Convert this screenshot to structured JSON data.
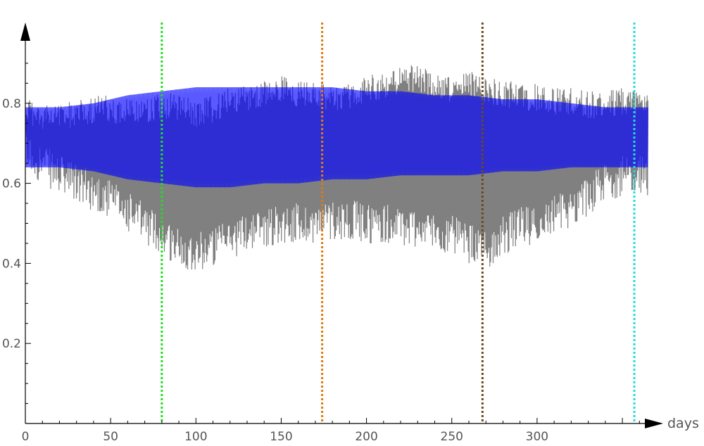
{
  "chart_data": {
    "type": "line",
    "title": "",
    "xlabel": "days",
    "ylabel": "",
    "xlim": [
      0,
      365
    ],
    "ylim": [
      0,
      0.95
    ],
    "x_ticks": [
      0,
      50,
      100,
      150,
      200,
      250,
      300
    ],
    "y_ticks": [
      0.2,
      0.4,
      0.6,
      0.8
    ],
    "grid": false,
    "legend": "none",
    "series": [
      {
        "kind": "daily-oscillation",
        "color": "#808080",
        "day_start": 0,
        "day_end": 365,
        "envelope_days": [
          0,
          10,
          20,
          30,
          40,
          50,
          60,
          70,
          80,
          90,
          100,
          110,
          120,
          130,
          140,
          150,
          160,
          170,
          180,
          190,
          200,
          210,
          220,
          230,
          240,
          250,
          260,
          270,
          280,
          290,
          300,
          310,
          320,
          330,
          340,
          350,
          360,
          365
        ],
        "upper": [
          0.82,
          0.8,
          0.8,
          0.81,
          0.82,
          0.82,
          0.81,
          0.82,
          0.83,
          0.82,
          0.81,
          0.82,
          0.84,
          0.85,
          0.86,
          0.87,
          0.86,
          0.86,
          0.85,
          0.85,
          0.87,
          0.88,
          0.89,
          0.9,
          0.88,
          0.87,
          0.88,
          0.87,
          0.86,
          0.85,
          0.85,
          0.84,
          0.84,
          0.83,
          0.83,
          0.84,
          0.84,
          0.84
        ],
        "lower": [
          0.63,
          0.6,
          0.57,
          0.55,
          0.53,
          0.51,
          0.48,
          0.45,
          0.42,
          0.39,
          0.38,
          0.39,
          0.41,
          0.43,
          0.44,
          0.45,
          0.45,
          0.45,
          0.46,
          0.46,
          0.45,
          0.45,
          0.44,
          0.44,
          0.43,
          0.42,
          0.4,
          0.38,
          0.42,
          0.44,
          0.45,
          0.47,
          0.49,
          0.52,
          0.55,
          0.57,
          0.58,
          0.55
        ]
      },
      {
        "kind": "smooth-envelope",
        "color": "#0000ff",
        "opacity": 0.65,
        "day_start": 0,
        "day_end": 365,
        "envelope_days": [
          0,
          20,
          40,
          60,
          80,
          100,
          110,
          120,
          140,
          160,
          180,
          200,
          220,
          240,
          260,
          280,
          300,
          320,
          340,
          365
        ],
        "upper": [
          0.79,
          0.79,
          0.8,
          0.82,
          0.83,
          0.84,
          0.84,
          0.84,
          0.84,
          0.84,
          0.84,
          0.83,
          0.83,
          0.82,
          0.82,
          0.81,
          0.81,
          0.8,
          0.79,
          0.79
        ],
        "lower": [
          0.64,
          0.64,
          0.63,
          0.61,
          0.6,
          0.59,
          0.59,
          0.59,
          0.6,
          0.6,
          0.61,
          0.61,
          0.62,
          0.62,
          0.62,
          0.63,
          0.63,
          0.64,
          0.64,
          0.64
        ]
      }
    ],
    "vertical_markers": [
      {
        "x": 80,
        "color": "#22dd22"
      },
      {
        "x": 174,
        "color": "#e07a10"
      },
      {
        "x": 268,
        "color": "#6b4a1a"
      },
      {
        "x": 357,
        "color": "#22dddd"
      }
    ]
  }
}
